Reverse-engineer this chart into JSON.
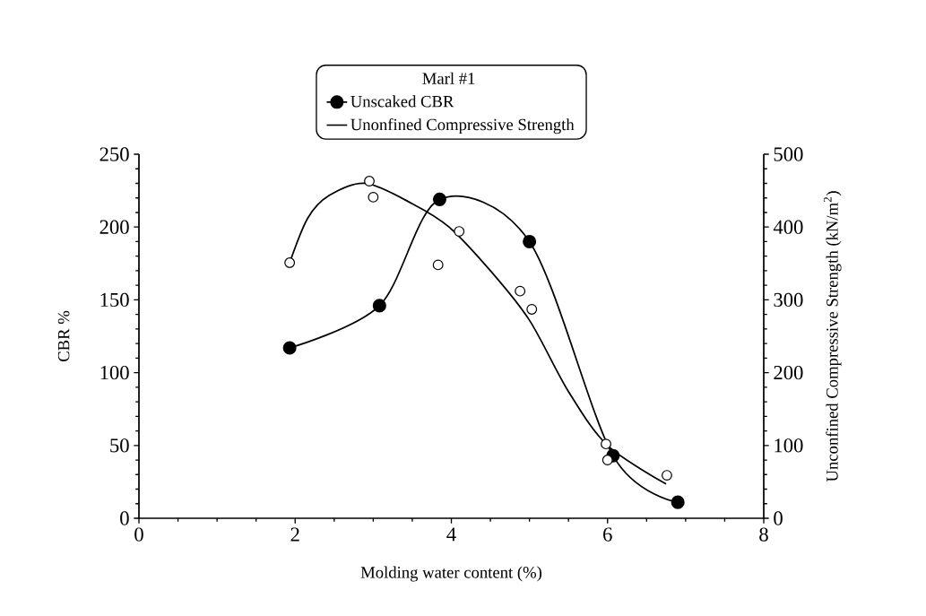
{
  "chart_data": {
    "type": "line",
    "legend_title": "Marl #1",
    "xlabel": "Molding water content (%)",
    "ylabel": "CBR %",
    "y2label": "Unconfined Compressive Strength (kN/m$^{2}$)",
    "xlim": [
      0,
      8
    ],
    "xticks": [
      0,
      2,
      4,
      6,
      8
    ],
    "ylim": [
      0,
      250
    ],
    "yticks": [
      0,
      50,
      100,
      150,
      200,
      250
    ],
    "y2lim": [
      0,
      500
    ],
    "y2ticks": [
      0,
      100,
      200,
      300,
      400,
      500
    ],
    "legend": "top",
    "grid": false,
    "series": [
      {
        "name": "Unscaked CBR",
        "type": "line",
        "color": "#000000",
        "marker": "circle",
        "x": [
          1.93,
          3.08,
          3.85,
          5.0,
          6.07,
          6.9
        ],
        "values": [
          117,
          146,
          219,
          190,
          43,
          11
        ]
      },
      {
        "name": "Unonfined Compressive Strength",
        "type": "scatter",
        "axis": "y2",
        "color": "#000000",
        "marker": "circle",
        "x": [
          1.93,
          2.95,
          3.0,
          3.83,
          4.1,
          4.88,
          5.03,
          5.98,
          6.0,
          6.76
        ],
        "values": [
          351,
          463,
          441,
          348,
          394,
          312,
          287,
          102,
          80,
          59
        ]
      },
      {
        "axis": "y2",
        "color": "#000000",
        "marker": "none",
        "x": [
          1.93,
          2.16,
          2.43,
          2.9,
          3.5,
          3.97,
          4.5,
          5.0,
          5.5,
          6.0,
          6.75
        ],
        "values": [
          351,
          412,
          443,
          460,
          432,
          400,
          340,
          272,
          174,
          100,
          47
        ]
      }
    ]
  }
}
